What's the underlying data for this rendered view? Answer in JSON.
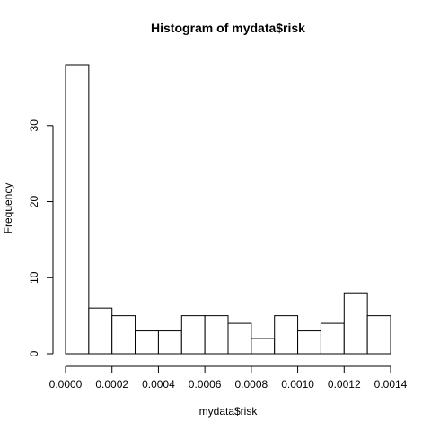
{
  "chart_data": {
    "type": "bar",
    "title": "Histogram of mydata$risk",
    "xlabel": "mydata$risk",
    "ylabel": "Frequency",
    "bin_edges": [
      0.0,
      0.0001,
      0.0002,
      0.0003,
      0.0004,
      0.0005,
      0.0006,
      0.0007,
      0.0008,
      0.0009,
      0.001,
      0.0011,
      0.0012,
      0.0013,
      0.0014
    ],
    "values": [
      38,
      6,
      5,
      3,
      3,
      5,
      5,
      4,
      2,
      5,
      3,
      4,
      8,
      5
    ],
    "xlim": [
      0.0,
      0.0014
    ],
    "ylim": [
      0,
      38
    ],
    "x_ticks": [
      {
        "value": 0.0,
        "label": "0.0000"
      },
      {
        "value": 0.0002,
        "label": "0.0002"
      },
      {
        "value": 0.0004,
        "label": "0.0004"
      },
      {
        "value": 0.0006,
        "label": "0.0006"
      },
      {
        "value": 0.0008,
        "label": "0.0008"
      },
      {
        "value": 0.001,
        "label": "0.0010"
      },
      {
        "value": 0.0012,
        "label": "0.0012"
      },
      {
        "value": 0.0014,
        "label": "0.0014"
      }
    ],
    "y_ticks": [
      {
        "value": 0,
        "label": "0"
      },
      {
        "value": 10,
        "label": "10"
      },
      {
        "value": 20,
        "label": "20"
      },
      {
        "value": 30,
        "label": "30"
      }
    ],
    "grid": false
  }
}
